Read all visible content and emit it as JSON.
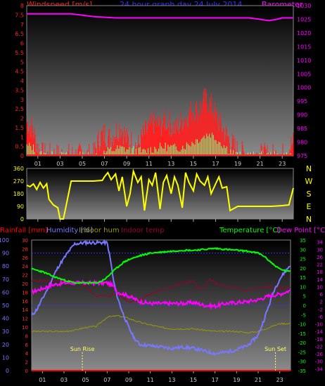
{
  "header": {
    "windspeed_label": "Windspeed [m/s]",
    "title": "24 hour graph day  24 July 2014",
    "barometer_label": "Barometer [hpa]"
  },
  "colors": {
    "wind": "#ff2020",
    "gust": "#ff5050",
    "avg": "#80ff80",
    "baro": "#ff00ff",
    "dir": "#ffff00",
    "humidity": "#7777ff",
    "indoor_hum": "#999900",
    "indoor_temp": "#990033",
    "temp": "#00ff00",
    "dew": "#ff00ff",
    "rain": "#ff0000"
  },
  "chart_data": [
    {
      "type": "line",
      "title": "24 hour graph day  24 July 2014",
      "x_ticks": [
        "01",
        "03",
        "05",
        "07",
        "09",
        "11",
        "13",
        "15",
        "17",
        "19",
        "21",
        "23"
      ],
      "y_left": {
        "label": "Windspeed [m/s]",
        "range": [
          0,
          8
        ],
        "ticks": [
          "0",
          "0.5",
          "1",
          "1.5",
          "2",
          "2.5",
          "3",
          "3.5",
          "4",
          "4.5",
          "5",
          "5.5",
          "6",
          "6.5",
          "7",
          "7.5",
          "8"
        ]
      },
      "y_right": {
        "label": "Barometer [hpa]",
        "range": [
          975,
          1030
        ],
        "ticks": [
          "975",
          "980",
          "985",
          "990",
          "995",
          "1000",
          "1005",
          "1010",
          "1015",
          "1020",
          "1025",
          "1030"
        ]
      },
      "series": [
        {
          "name": "Barometer [hpa]",
          "axis": "right",
          "x": [
            0,
            2,
            4,
            6,
            8,
            10,
            12,
            14,
            16,
            18,
            20,
            21,
            21.8,
            22.5,
            23,
            24
          ],
          "y": [
            1027,
            1027,
            1027,
            1026,
            1025.5,
            1025.5,
            1025.5,
            1025.5,
            1025.5,
            1025.5,
            1025.5,
            1025,
            1024.5,
            1025,
            1025.5,
            1025.5
          ]
        },
        {
          "name": "Windspeed [m/s]",
          "axis": "left",
          "x": [
            0,
            0.5,
            1,
            1.5,
            2,
            3,
            4,
            5,
            6,
            6.5,
            7,
            7.5,
            8,
            8.5,
            9,
            10,
            10.5,
            11,
            11.5,
            12,
            12.5,
            13,
            13.5,
            14,
            14.5,
            15,
            15.5,
            16,
            16.5,
            17,
            17.5,
            18,
            18.5,
            19,
            20,
            21,
            22,
            23,
            24
          ],
          "y": [
            1.8,
            1.5,
            0.4,
            0,
            0,
            0,
            0,
            0,
            0,
            0.9,
            1.2,
            0.9,
            1.3,
            1.6,
            0.9,
            0.5,
            1.1,
            1.5,
            1.8,
            1.6,
            1.9,
            1.7,
            1.4,
            1.9,
            2.2,
            2.5,
            2.4,
            3,
            2.8,
            2.2,
            1.6,
            1.1,
            0.6,
            0.2,
            0,
            0,
            0,
            0,
            0.7
          ]
        },
        {
          "name": "Average wind",
          "axis": "left",
          "x": [
            0,
            0.5,
            1,
            2,
            6.5,
            7.5,
            8.5,
            9.5,
            10.5,
            11.5,
            12.5,
            13.5,
            14.5,
            15.5,
            16.5,
            17.5,
            18,
            18.5,
            19,
            24
          ],
          "y": [
            0.5,
            0.5,
            0.1,
            0,
            0,
            0.3,
            0.4,
            0.3,
            0.2,
            0.4,
            0.5,
            0.4,
            0.6,
            0.9,
            1.2,
            0.7,
            0.4,
            0.2,
            0,
            0
          ]
        }
      ]
    },
    {
      "type": "line",
      "x_ticks": [
        "01",
        "03",
        "05",
        "07",
        "09",
        "11",
        "13",
        "15",
        "17",
        "19",
        "21",
        "23"
      ],
      "y_left": {
        "range": [
          0,
          360
        ],
        "ticks": [
          "0",
          "90",
          "180",
          "270",
          "360"
        ]
      },
      "y_right": {
        "ticks": [
          "N",
          "W",
          "S",
          "E",
          "N"
        ]
      },
      "series": [
        {
          "name": "Wind direction",
          "x": [
            0,
            0.3,
            0.6,
            0.9,
            1.2,
            1.5,
            1.8,
            2,
            2.4,
            2.8,
            3,
            3.3,
            4,
            5,
            6,
            6.8,
            7,
            7.3,
            7.6,
            8,
            8.3,
            8.6,
            9,
            9.3,
            9.6,
            10,
            10.3,
            10.6,
            11,
            11.3,
            11.6,
            12,
            12.3,
            12.6,
            13,
            13.3,
            13.6,
            14,
            14.3,
            14.6,
            15,
            15.3,
            15.6,
            16,
            16.3,
            16.6,
            17,
            17.3,
            17.6,
            18,
            18.3,
            19,
            20,
            21,
            22,
            23,
            23.6,
            24
          ],
          "y": [
            240,
            230,
            250,
            210,
            260,
            220,
            250,
            140,
            100,
            80,
            0,
            0,
            270,
            270,
            270,
            275,
            300,
            330,
            280,
            320,
            200,
            300,
            90,
            180,
            340,
            260,
            300,
            60,
            280,
            240,
            330,
            70,
            260,
            310,
            180,
            300,
            240,
            80,
            330,
            260,
            200,
            320,
            270,
            240,
            300,
            180,
            250,
            300,
            220,
            230,
            60,
            90,
            90,
            90,
            90,
            95,
            100,
            220
          ]
        }
      ]
    },
    {
      "type": "line",
      "x_ticks": [
        "01",
        "03",
        "05",
        "07",
        "09",
        "11",
        "13",
        "15",
        "17",
        "19",
        "21",
        "23"
      ],
      "legend": [
        "Rainfall [mm]",
        "Humidity [%]",
        "Indoor hum",
        "Indoor temp",
        "Temperature [°C]",
        "Dew Point [°C]"
      ],
      "y_rain": {
        "label": "Rainfall [mm]",
        "range": [
          0,
          30
        ],
        "ticks": [
          "0",
          "2",
          "4",
          "6",
          "8",
          "10",
          "12",
          "14",
          "16",
          "18",
          "20",
          "22",
          "24",
          "26",
          "28",
          "30"
        ]
      },
      "y_hum": {
        "label": "Humidity [%]",
        "range": [
          0,
          100
        ],
        "ticks": [
          "0",
          "10",
          "20",
          "30",
          "40",
          "50",
          "60",
          "70",
          "80",
          "90",
          "100"
        ]
      },
      "y_temp": {
        "label": "Temperature [°C]",
        "range": [
          -35,
          35
        ],
        "ticks": [
          "-35",
          "-30",
          "-25",
          "-20",
          "-15",
          "-10",
          "-5",
          "0",
          "5",
          "10",
          "15",
          "20",
          "25",
          "30",
          "35"
        ]
      },
      "y_dew": {
        "label": "Dew Point [°C]",
        "range": [
          -35,
          35
        ],
        "ticks": [
          "-34",
          "-30",
          "-26",
          "-22",
          "-18",
          "-14",
          "-10",
          "-6",
          "-2",
          "2",
          "6",
          "10",
          "14",
          "18",
          "22",
          "26",
          "30",
          "34"
        ]
      },
      "annotations": [
        "Sun Rise",
        "Sun Set"
      ],
      "series": [
        {
          "name": "Humidity [%]",
          "axis": "hum",
          "x": [
            0,
            0.5,
            1,
            1.5,
            2,
            2.5,
            3,
            3.5,
            4,
            5,
            6,
            6.6,
            7,
            7.3,
            7.6,
            8,
            8.5,
            9,
            9.5,
            10,
            11,
            12,
            13,
            14,
            15,
            16,
            17,
            18,
            19,
            20,
            21,
            21.5,
            22,
            22.5,
            23,
            23.5,
            24
          ],
          "y": [
            42,
            47,
            55,
            63,
            72,
            80,
            86,
            92,
            97,
            98,
            98,
            98,
            98,
            85,
            68,
            55,
            43,
            33,
            25,
            20,
            19,
            18,
            17,
            18,
            17,
            15,
            13,
            14,
            16,
            19,
            27,
            38,
            50,
            62,
            70,
            76,
            81
          ]
        },
        {
          "name": "Temperature [°C]",
          "axis": "temp",
          "x": [
            0,
            1,
            2,
            3,
            4,
            5,
            6,
            6.5,
            7,
            7.5,
            8,
            8.5,
            9,
            10,
            11,
            12,
            13,
            14,
            15,
            16,
            17,
            18,
            19,
            20,
            21,
            21.5,
            22,
            22.5,
            23,
            23.5,
            24
          ],
          "y": [
            19.5,
            18,
            15.5,
            13.5,
            12,
            12,
            12,
            13,
            15,
            18,
            20.5,
            23,
            24.5,
            26.5,
            28,
            28.5,
            29,
            29.5,
            29.5,
            30,
            30.5,
            30,
            29.5,
            29,
            28,
            26.5,
            24,
            21.5,
            19.5,
            18.5,
            18
          ]
        },
        {
          "name": "Dew Point [°C]",
          "axis": "temp",
          "x": [
            0,
            1,
            2,
            3,
            4,
            5,
            6,
            7,
            7.5,
            8,
            9,
            10,
            11,
            12,
            13,
            14,
            15,
            16,
            17,
            18,
            19,
            20,
            21,
            22,
            23,
            24
          ],
          "y": [
            7,
            9,
            11,
            12,
            12,
            12,
            12,
            12,
            10.5,
            7,
            5,
            2,
            1,
            1,
            1,
            1,
            1.5,
            0,
            -0.5,
            1,
            1.5,
            2,
            3,
            5,
            6,
            8
          ]
        },
        {
          "name": "Indoor temp",
          "axis": "temp",
          "x": [
            0,
            1,
            2,
            3,
            4,
            5,
            6,
            7,
            8,
            9,
            10,
            11,
            12,
            13,
            14,
            15,
            15.5,
            16,
            16.5,
            17,
            18,
            19,
            20,
            21,
            22,
            23,
            24
          ],
          "y": [
            13,
            13,
            13,
            13,
            12.5,
            10,
            5,
            5,
            6,
            2,
            3,
            6,
            8,
            10,
            12,
            13,
            8,
            10,
            14,
            12,
            10,
            9,
            8,
            9,
            10,
            9,
            10
          ]
        },
        {
          "name": "Indoor hum",
          "axis": "hum",
          "x": [
            0,
            1,
            2,
            3,
            4,
            5,
            6,
            7,
            8,
            9,
            10,
            11,
            12,
            13,
            14,
            15,
            16,
            17,
            18,
            19,
            20,
            21,
            22,
            23,
            24
          ],
          "y": [
            30,
            30,
            30,
            30,
            31,
            33,
            34,
            41,
            42,
            40,
            37,
            35,
            33,
            32,
            32,
            32,
            31,
            30,
            30,
            30,
            29,
            30,
            33,
            36,
            36
          ]
        },
        {
          "name": "Rainfall [mm]",
          "axis": "rain",
          "x": [
            0,
            24
          ],
          "y": [
            0,
            0
          ]
        }
      ]
    }
  ]
}
